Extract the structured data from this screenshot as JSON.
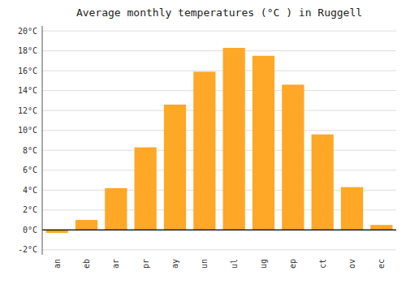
{
  "chart_data": {
    "type": "bar",
    "title": "Average monthly temperatures (°C ) in Ruggell",
    "categories": [
      "an",
      "eb",
      "ar",
      "pr",
      "ay",
      "un",
      "ul",
      "ug",
      "ep",
      "ct",
      "ov",
      "ec"
    ],
    "values": [
      -0.3,
      1.0,
      4.2,
      8.3,
      12.6,
      15.9,
      18.3,
      17.5,
      14.6,
      9.6,
      4.3,
      0.5
    ],
    "color": "#FFA726",
    "ylim": [
      -2.5,
      20.5
    ],
    "yticks": [
      {
        "value": -2,
        "label": "-2°C"
      },
      {
        "value": 0,
        "label": "0°C"
      },
      {
        "value": 2,
        "label": "2°C"
      },
      {
        "value": 4,
        "label": "4°C"
      },
      {
        "value": 6,
        "label": "6°C"
      },
      {
        "value": 8,
        "label": "8°C"
      },
      {
        "value": 10,
        "label": "10°C"
      },
      {
        "value": 12,
        "label": "12°C"
      },
      {
        "value": 14,
        "label": "14°C"
      },
      {
        "value": 16,
        "label": "16°C"
      },
      {
        "value": 18,
        "label": "18°C"
      },
      {
        "value": 20,
        "label": "20°C"
      }
    ],
    "grid": true
  }
}
